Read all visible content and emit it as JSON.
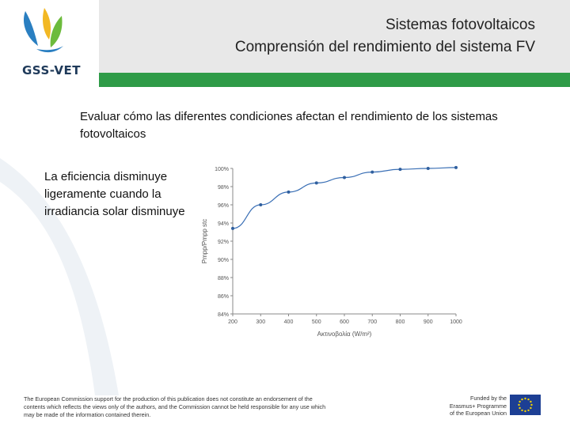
{
  "header": {
    "logo_text": "GSS-VET",
    "title_line1": "Sistemas fotovoltaicos",
    "title_line2": "Comprensión del rendimiento del sistema FV"
  },
  "body": {
    "intro": "Evaluar cómo las diferentes condiciones afectan el rendimiento de los sistemas fotovoltaicos",
    "left_text": "La eficiencia disminuye ligeramente cuando la irradiancia solar disminuye"
  },
  "chart_data": {
    "type": "line",
    "xlabel": "Ακτινοβολία (W/m²)",
    "ylabel": "Pmpp/Pmpp stc",
    "x": [
      200,
      300,
      400,
      500,
      600,
      700,
      800,
      900,
      1000
    ],
    "series": [
      {
        "values": [
          93.4,
          96.0,
          97.4,
          98.4,
          99.0,
          99.6,
          99.9,
          100.0,
          100.1
        ]
      }
    ],
    "xticks": [
      "200",
      "300",
      "400",
      "500",
      "600",
      "700",
      "800",
      "900",
      "1000"
    ],
    "yticks": [
      "84%",
      "86%",
      "88%",
      "90%",
      "92%",
      "94%",
      "96%",
      "98%",
      "100%"
    ],
    "ylim": [
      84,
      100
    ],
    "xlim": [
      200,
      1000
    ],
    "grid": false,
    "color": "#3a6fb5"
  },
  "footer": {
    "disclaimer_line1": "The European Commission support for the production of this publication does not constitute an endorsement of the",
    "disclaimer_line2": "contents which reflects the views only of the authors, and the Commission cannot be held responsible for any use which",
    "disclaimer_line3": "may be made of the information contained therein.",
    "funded_line1": "Funded by the",
    "funded_line2": "Erasmus+ Programme",
    "funded_line3": "of the European Union"
  },
  "colors": {
    "header_band": "#e8e8e8",
    "green_bar": "#2e9b47",
    "logo_navy": "#1f3a5a",
    "logo_blue": "#2a7fc1",
    "logo_yellow": "#f2b824",
    "logo_green": "#6cbb3c"
  },
  "icons": [
    "gss-vet-logo-icon",
    "eu-flag-icon"
  ]
}
